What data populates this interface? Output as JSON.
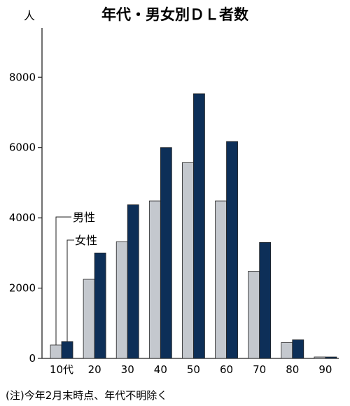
{
  "chart_data": {
    "type": "bar",
    "title": "年代・男女別ＤＬ者数",
    "unit_label": "人",
    "categories": [
      "10代",
      "20",
      "30",
      "40",
      "50",
      "60",
      "70",
      "80",
      "90"
    ],
    "series": [
      {
        "name": "女性",
        "values": [
          380,
          2250,
          3320,
          4480,
          5570,
          4480,
          2480,
          450,
          40
        ],
        "color": "#c4c8ce"
      },
      {
        "name": "男性",
        "values": [
          480,
          3000,
          4370,
          6000,
          7530,
          6170,
          3300,
          530,
          40
        ],
        "color": "#0d2f58"
      }
    ],
    "ylim": [
      0,
      9400
    ],
    "yticks": [
      0,
      2000,
      4000,
      6000,
      8000
    ],
    "ytick_labels": [
      "0",
      "2000",
      "4000",
      "6000",
      "8000"
    ],
    "grid": false,
    "legend_placement": "left, callout lines to the 10代 bars",
    "note": "(注)今年2月末時点、年代不明除く",
    "colors": {
      "female": "#c4c8ce",
      "male": "#0d2f58",
      "axis": "#222222"
    }
  }
}
